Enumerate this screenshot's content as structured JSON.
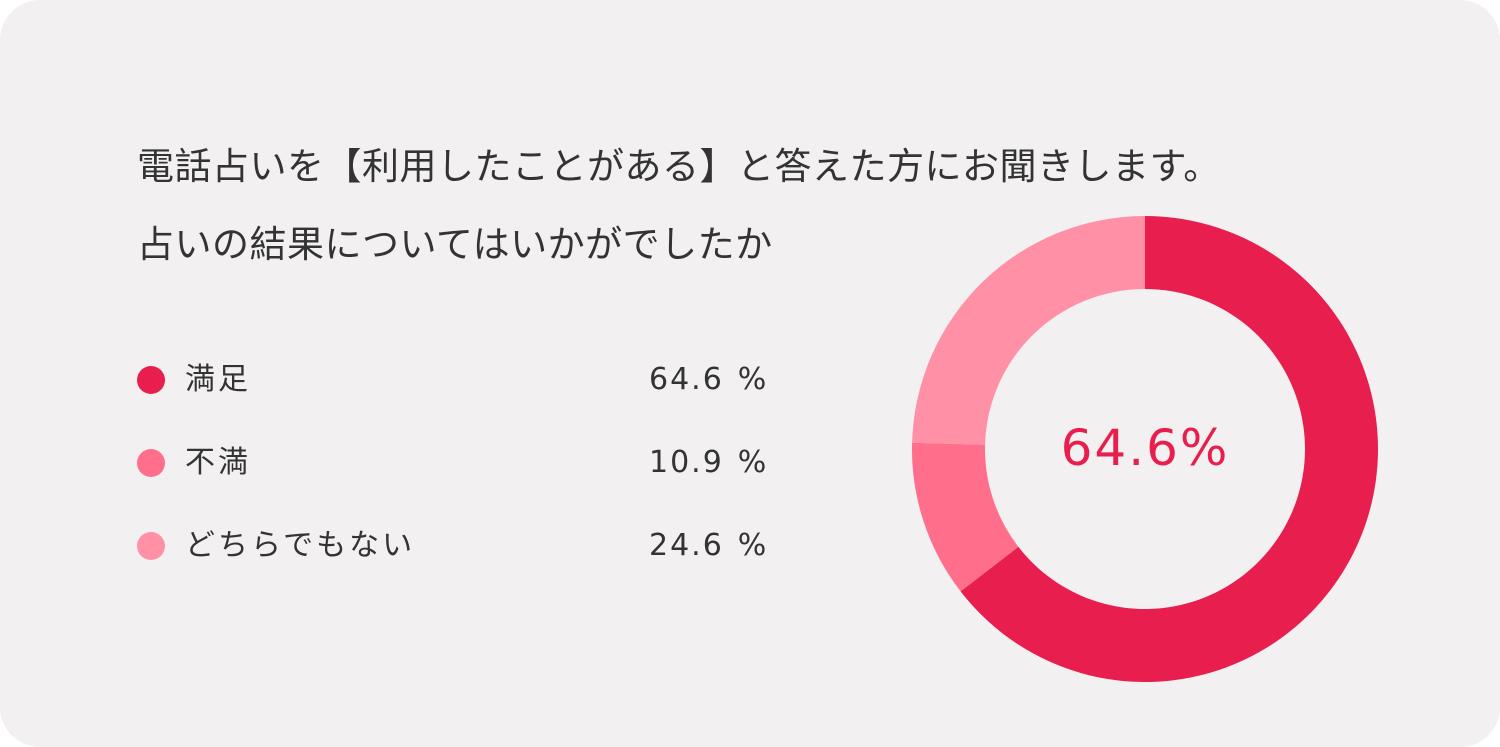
{
  "title": {
    "line1": "電話占いを【利用したことがある】と答えた方にお聞きします。",
    "line2": "占いの結果についてはいかがでしたか"
  },
  "legend": [
    {
      "label": "満足",
      "value": "64.6",
      "unit": "%",
      "color": "#e81e4e"
    },
    {
      "label": "不満",
      "value": "10.9",
      "unit": "%",
      "color": "#ff6f8c"
    },
    {
      "label": "どちらでもない",
      "value": "24.6",
      "unit": "%",
      "color": "#ff90a6"
    }
  ],
  "center_label": "64.6%",
  "colors": {
    "background": "#f2f0f1",
    "accent": "#e81e4e",
    "text": "#333333"
  },
  "chart_data": {
    "type": "pie",
    "donut": true,
    "title": "電話占いを【利用したことがある】と答えた方にお聞きします。占いの結果についてはいかがでしたか",
    "categories": [
      "満足",
      "不満",
      "どちらでもない"
    ],
    "values": [
      64.6,
      10.9,
      24.6
    ],
    "unit": "%",
    "colors": [
      "#e81e4e",
      "#ff6f8c",
      "#ff90a6"
    ],
    "start_angle": "12 o'clock",
    "direction": "clockwise",
    "center_label": "64.6%",
    "legend": "left"
  }
}
